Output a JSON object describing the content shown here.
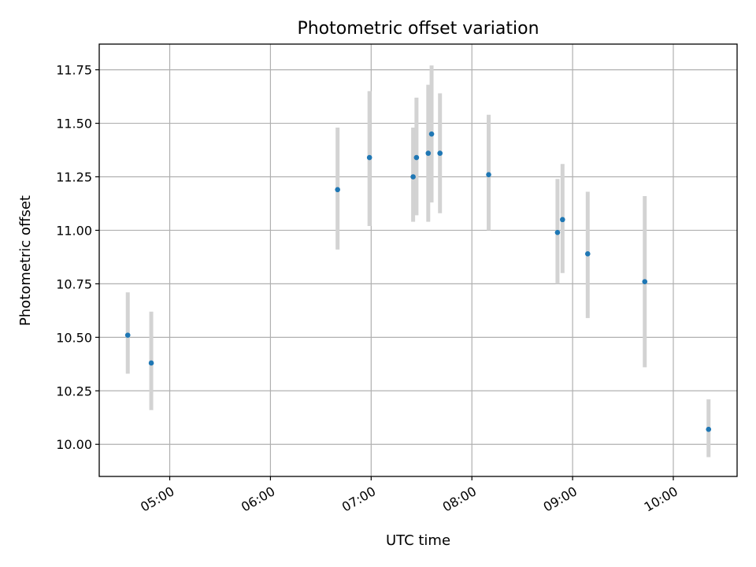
{
  "chart_data": {
    "type": "scatter",
    "title": "Photometric offset variation",
    "xlabel": "UTC time",
    "ylabel": "Photometric offset",
    "x_unit": "hours UTC",
    "xlim": [
      "04:18",
      "10:38"
    ],
    "ylim": [
      9.85,
      11.87
    ],
    "x_ticks": [
      "05:00",
      "06:00",
      "07:00",
      "08:00",
      "09:00",
      "10:00"
    ],
    "y_ticks": [
      "10.00",
      "10.25",
      "10.50",
      "10.75",
      "11.00",
      "11.25",
      "11.50",
      "11.75"
    ],
    "grid": true,
    "point_color": "#1f77b4",
    "errorbar_color": "#d3d3d3",
    "points": [
      {
        "x": "04:35",
        "y": 10.51,
        "ylow": 10.33,
        "yhigh": 10.71
      },
      {
        "x": "04:49",
        "y": 10.38,
        "ylow": 10.16,
        "yhigh": 10.62
      },
      {
        "x": "06:40",
        "y": 11.19,
        "ylow": 10.91,
        "yhigh": 11.48
      },
      {
        "x": "06:59",
        "y": 11.34,
        "ylow": 11.02,
        "yhigh": 11.65
      },
      {
        "x": "07:25",
        "y": 11.25,
        "ylow": 11.04,
        "yhigh": 11.48
      },
      {
        "x": "07:27",
        "y": 11.34,
        "ylow": 11.07,
        "yhigh": 11.62
      },
      {
        "x": "07:34",
        "y": 11.36,
        "ylow": 11.04,
        "yhigh": 11.68
      },
      {
        "x": "07:36",
        "y": 11.45,
        "ylow": 11.13,
        "yhigh": 11.77
      },
      {
        "x": "07:41",
        "y": 11.36,
        "ylow": 11.08,
        "yhigh": 11.64
      },
      {
        "x": "08:10",
        "y": 11.26,
        "ylow": 11.0,
        "yhigh": 11.54
      },
      {
        "x": "08:51",
        "y": 10.99,
        "ylow": 10.75,
        "yhigh": 11.24
      },
      {
        "x": "08:54",
        "y": 11.05,
        "ylow": 10.8,
        "yhigh": 11.31
      },
      {
        "x": "09:09",
        "y": 10.89,
        "ylow": 10.59,
        "yhigh": 11.18
      },
      {
        "x": "09:43",
        "y": 10.76,
        "ylow": 10.36,
        "yhigh": 11.16
      },
      {
        "x": "10:21",
        "y": 10.07,
        "ylow": 9.94,
        "yhigh": 10.21
      }
    ]
  }
}
